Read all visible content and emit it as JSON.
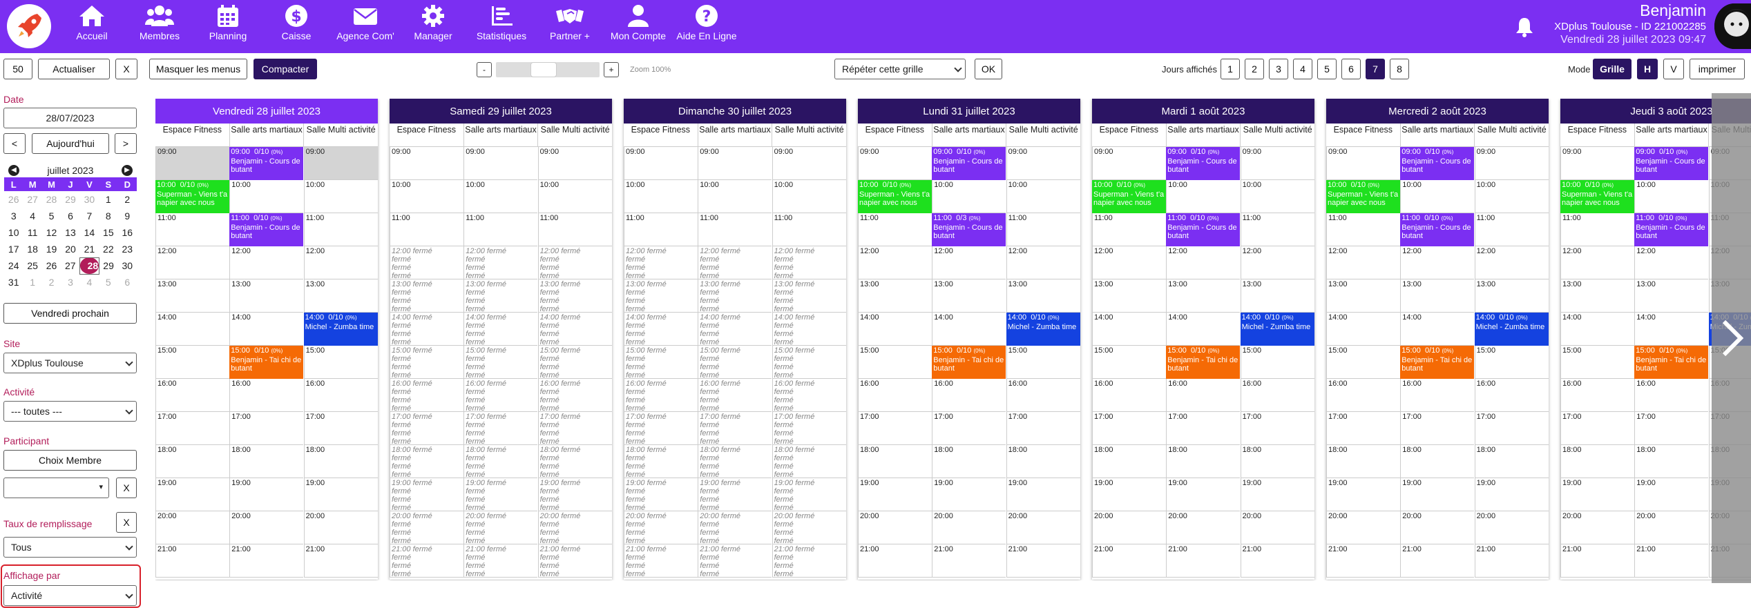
{
  "topbar": {
    "nav": [
      {
        "label": "Accueil",
        "icon": "home-icon"
      },
      {
        "label": "Membres",
        "icon": "members-icon"
      },
      {
        "label": "Planning",
        "icon": "calendar-icon"
      },
      {
        "label": "Caisse",
        "icon": "dollar-icon"
      },
      {
        "label": "Agence Com'",
        "icon": "mail-icon"
      },
      {
        "label": "Manager",
        "icon": "gear-icon"
      },
      {
        "label": "Statistiques",
        "icon": "chart-icon"
      },
      {
        "label": "Partner +",
        "icon": "handshake-icon"
      },
      {
        "label": "Mon Compte",
        "icon": "user-icon"
      },
      {
        "label": "Aide En Ligne",
        "icon": "help-icon"
      }
    ],
    "user_name": "Benjamin",
    "user_site": "XDplus Toulouse - ID 221002285",
    "user_date": "Vendredi 28 juillet 2023 09:47",
    "colors": {
      "primary": "#7b2ff2",
      "dark": "#2b1463"
    }
  },
  "toolbar": {
    "limit": "50",
    "refresh": "Actualiser",
    "clear": "X",
    "hide_menus": "Masquer les menus",
    "compact": "Compacter",
    "zoom_minus": "-",
    "zoom_plus": "+",
    "zoom_label": "Zoom 100%",
    "repeat_grid": "Répéter cette grille",
    "ok": "OK",
    "days_label": "Jours affichés",
    "days": [
      "1",
      "2",
      "3",
      "4",
      "5",
      "6",
      "7",
      "8"
    ],
    "days_selected": "7",
    "mode_label": "Mode",
    "mode_grid": "Grille",
    "mode_h": "H",
    "mode_v": "V",
    "print": "imprimer"
  },
  "sidebar": {
    "date_label": "Date",
    "date_value": "28/07/2023",
    "prev": "<",
    "today": "Aujourd'hui",
    "next": ">",
    "month_title": "juillet  2023",
    "weekdays": [
      "L",
      "M",
      "M",
      "J",
      "V",
      "S",
      "D"
    ],
    "weeks": [
      [
        "26",
        "27",
        "28",
        "29",
        "30",
        "1",
        "2"
      ],
      [
        "3",
        "4",
        "5",
        "6",
        "7",
        "8",
        "9"
      ],
      [
        "10",
        "11",
        "12",
        "13",
        "14",
        "15",
        "16"
      ],
      [
        "17",
        "18",
        "19",
        "20",
        "21",
        "22",
        "23"
      ],
      [
        "24",
        "25",
        "26",
        "27",
        "28",
        "29",
        "30"
      ],
      [
        "31",
        "1",
        "2",
        "3",
        "4",
        "5",
        "6"
      ]
    ],
    "selected_day": "28",
    "next_friday": "Vendredi prochain",
    "site_label": "Site",
    "site_value": "XDplus Toulouse",
    "activity_label": "Activité",
    "activity_value": "--- toutes ---",
    "participant_label": "Participant",
    "choose_member": "Choix Membre",
    "clear": "X",
    "fill_label": "Taux de remplissage",
    "fill_value": "Tous",
    "display_label": "Affichage par",
    "display_value": "Activité"
  },
  "planning": {
    "rooms": [
      "Espace Fitness",
      "Salle arts martiaux",
      "Salle Multi activité"
    ],
    "hours": [
      "09:00",
      "10:00",
      "11:00",
      "12:00",
      "13:00",
      "14:00",
      "15:00",
      "16:00",
      "17:00",
      "18:00",
      "19:00",
      "20:00",
      "21:00"
    ],
    "closed_word": "fermé",
    "days": [
      {
        "title": "Vendredi 28 juillet 2023",
        "closed": false
      },
      {
        "title": "Samedi 29 juillet 2023",
        "closed": true
      },
      {
        "title": "Dimanche 30 juillet 2023",
        "closed": true
      },
      {
        "title": "Lundi 31 juillet 2023",
        "closed": false
      },
      {
        "title": "Mardi 1 août 2023",
        "closed": false
      },
      {
        "title": "Mercredi 2 août 2023",
        "closed": false
      },
      {
        "title": "Jeudi 3 août 2023",
        "closed": false
      }
    ],
    "events": [
      {
        "room": 1,
        "hour": 0,
        "color": "purple",
        "time": "09:00",
        "count": "0/10",
        "pct": "(0%)",
        "title": "Benjamin - Cours de butant"
      },
      {
        "room": 0,
        "hour": 1,
        "color": "green",
        "time": "10:00",
        "count": "0/10",
        "pct": "(0%)",
        "title": "Superman - Viens t'a napier avec nous"
      },
      {
        "room": 1,
        "hour": 2,
        "color": "purple",
        "time": "11:00",
        "count": "0/10",
        "pct": "(0%)",
        "title": "Benjamin - Cours de butant"
      },
      {
        "room": 2,
        "hour": 5,
        "color": "blue",
        "time": "14:00",
        "count": "0/10",
        "pct": "(0%)",
        "title": "Michel - Zumba time"
      },
      {
        "room": 1,
        "hour": 6,
        "color": "orange",
        "time": "15:00",
        "count": "0/10",
        "pct": "(0%)",
        "title": "Benjamin - Tai chi de butant"
      }
    ],
    "monday_11_count": "0/3"
  }
}
